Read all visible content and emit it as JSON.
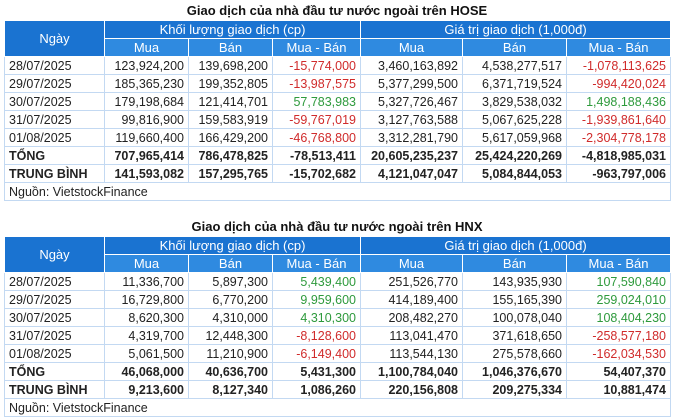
{
  "colors": {
    "header": "#1a73d1",
    "subheader": "#2f8ae0",
    "negative": "#d02b2b",
    "positive": "#2e9a3c"
  },
  "tables": [
    {
      "title": "Giao dịch của nhà đầu tư nước ngoài trên HOSE",
      "date_header": "Ngày",
      "group1": "Khối lượng giao dịch (cp)",
      "group2": "Giá trị giao dịch (1,000đ)",
      "subheaders": [
        "Mua",
        "Bán",
        "Mua - Bán",
        "Mua",
        "Bán",
        "Mua - Bán"
      ],
      "rows": [
        [
          "28/07/2025",
          "123,924,200",
          "139,698,200",
          "-15,774,000",
          "3,460,163,892",
          "4,538,277,517",
          "-1,078,113,625"
        ],
        [
          "29/07/2025",
          "185,365,230",
          "199,352,805",
          "-13,987,575",
          "5,377,299,500",
          "6,371,719,524",
          "-994,420,024"
        ],
        [
          "30/07/2025",
          "179,198,684",
          "121,414,701",
          "57,783,983",
          "5,327,726,467",
          "3,829,538,032",
          "1,498,188,436"
        ],
        [
          "31/07/2025",
          "99,816,900",
          "159,583,919",
          "-59,767,019",
          "3,127,763,588",
          "5,067,625,228",
          "-1,939,861,640"
        ],
        [
          "01/08/2025",
          "119,660,400",
          "166,429,200",
          "-46,768,800",
          "3,312,281,790",
          "5,617,059,968",
          "-2,304,778,178"
        ]
      ],
      "total": [
        "TỔNG",
        "707,965,414",
        "786,478,825",
        "-78,513,411",
        "20,605,235,237",
        "25,424,220,269",
        "-4,818,985,031"
      ],
      "average": [
        "TRUNG BÌNH",
        "141,593,082",
        "157,295,765",
        "-15,702,682",
        "4,121,047,047",
        "5,084,844,053",
        "-963,797,006"
      ],
      "source": "Nguồn: VietstockFinance"
    },
    {
      "title": "Giao dịch của nhà đầu tư nước ngoài trên HNX",
      "date_header": "Ngày",
      "group1": "Khối lượng giao dịch (cp)",
      "group2": "Giá trị giao dịch (1,000đ)",
      "subheaders": [
        "Mua",
        "Bán",
        "Mua - Bán",
        "Mua",
        "Bán",
        "Mua - Bán"
      ],
      "rows": [
        [
          "28/07/2025",
          "11,336,700",
          "5,897,300",
          "5,439,400",
          "251,526,770",
          "143,935,930",
          "107,590,840"
        ],
        [
          "29/07/2025",
          "16,729,800",
          "6,770,200",
          "9,959,600",
          "414,189,400",
          "155,165,390",
          "259,024,010"
        ],
        [
          "30/07/2025",
          "8,620,300",
          "4,310,000",
          "4,310,300",
          "208,482,270",
          "100,078,040",
          "108,404,230"
        ],
        [
          "31/07/2025",
          "4,319,700",
          "12,448,300",
          "-8,128,600",
          "113,041,470",
          "371,618,650",
          "-258,577,180"
        ],
        [
          "01/08/2025",
          "5,061,500",
          "11,210,900",
          "-6,149,400",
          "113,544,130",
          "275,578,660",
          "-162,034,530"
        ]
      ],
      "total": [
        "TỔNG",
        "46,068,000",
        "40,636,700",
        "5,431,300",
        "1,100,784,040",
        "1,046,376,670",
        "54,407,370"
      ],
      "average": [
        "TRUNG BÌNH",
        "9,213,600",
        "8,127,340",
        "1,086,260",
        "220,156,808",
        "209,275,334",
        "10,881,474"
      ],
      "source": "Nguồn: VietstockFinance"
    }
  ]
}
